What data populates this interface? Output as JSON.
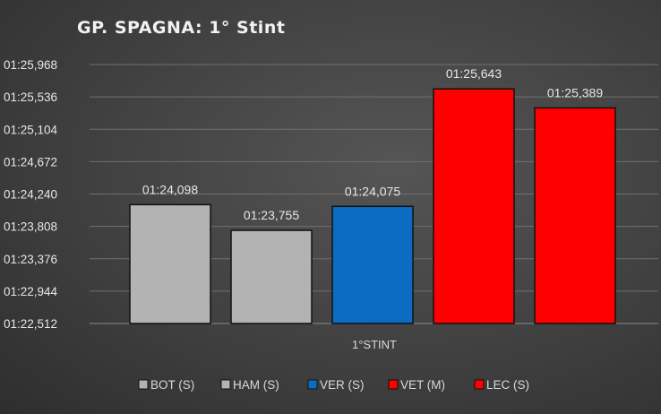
{
  "chart_data": {
    "type": "bar",
    "title": "GP. SPAGNA: 1° Stint",
    "xlabel": "1°STINT",
    "categories": [
      "1°STINT"
    ],
    "y_tick_labels": [
      "01:22,512",
      "01:22,944",
      "01:23,376",
      "01:23,808",
      "01:24,240",
      "01:24,672",
      "01:25,104",
      "01:25,536",
      "01:25,968"
    ],
    "ylim_seconds": [
      82.512,
      85.968
    ],
    "grid": true,
    "legend_position": "bottom",
    "series": [
      {
        "name": "BOT (S)",
        "value_seconds": 84.098,
        "label": "01:24,098",
        "color": "#b3b3b3"
      },
      {
        "name": "HAM (S)",
        "value_seconds": 83.755,
        "label": "01:23,755",
        "color": "#b3b3b3"
      },
      {
        "name": "VER (S)",
        "value_seconds": 84.075,
        "label": "01:24,075",
        "color": "#0c6bc2"
      },
      {
        "name": "VET (M)",
        "value_seconds": 85.643,
        "label": "01:25,643",
        "color": "#ff0000"
      },
      {
        "name": "LEC (S)",
        "value_seconds": 85.389,
        "label": "01:25,389",
        "color": "#ff0000"
      }
    ]
  }
}
